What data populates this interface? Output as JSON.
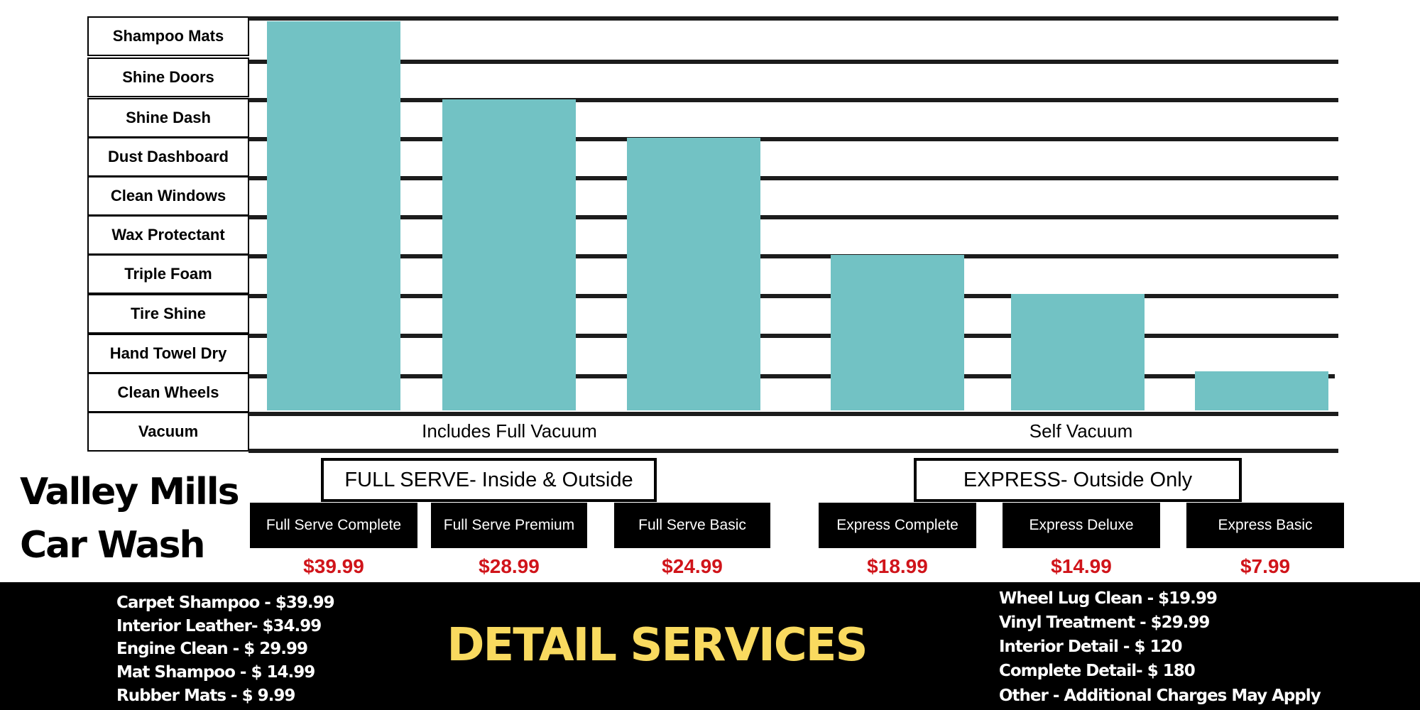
{
  "features": [
    "Shampoo Mats",
    "Shine Doors",
    "Shine Dash",
    "Dust Dashboard",
    "Clean Windows",
    "Wax Protectant",
    "Triple Foam",
    "Tire Shine",
    "Hand Towel Dry",
    "Clean Wheels",
    "Vacuum"
  ],
  "vacuum": {
    "full_label": "Includes Full Vacuum",
    "self_label": "Self Vacuum"
  },
  "categories": {
    "full_serve": "FULL SERVE- Inside & Outside",
    "express": "EXPRESS- Outside Only"
  },
  "packages": [
    {
      "name": "Full Serve Complete",
      "price": "$39.99",
      "features_included": 10
    },
    {
      "name": "Full Serve Premium",
      "price": "$28.99",
      "features_included": 8
    },
    {
      "name": "Full Serve Basic",
      "price": "$24.99",
      "features_included": 7
    },
    {
      "name": "Express Complete",
      "price": "$18.99",
      "features_included": 4
    },
    {
      "name": "Express Deluxe",
      "price": "$14.99",
      "features_included": 3
    },
    {
      "name": "Express Basic",
      "price": "$7.99",
      "features_included": 1
    }
  ],
  "brand": {
    "line1": "Valley Mills",
    "line2": "Car Wash"
  },
  "detail": {
    "title": "DETAIL SERVICES",
    "left_items": [
      "Carpet Shampoo - $39.99",
      "Interior Leather- $34.99",
      "Engine Clean - $ 29.99",
      "Mat Shampoo - $ 14.99",
      "Rubber Mats - $ 9.99"
    ],
    "right_items": [
      "Wheel Lug Clean - $19.99",
      "Vinyl Treatment - $29.99",
      "Interior Detail - $ 120",
      "Complete Detail- $ 180",
      "Other - Additional Charges May Apply"
    ]
  },
  "colors": {
    "bar": "#72c2c4",
    "price": "#d0141a",
    "detail_title": "#f9da5f",
    "band": "#000000"
  }
}
